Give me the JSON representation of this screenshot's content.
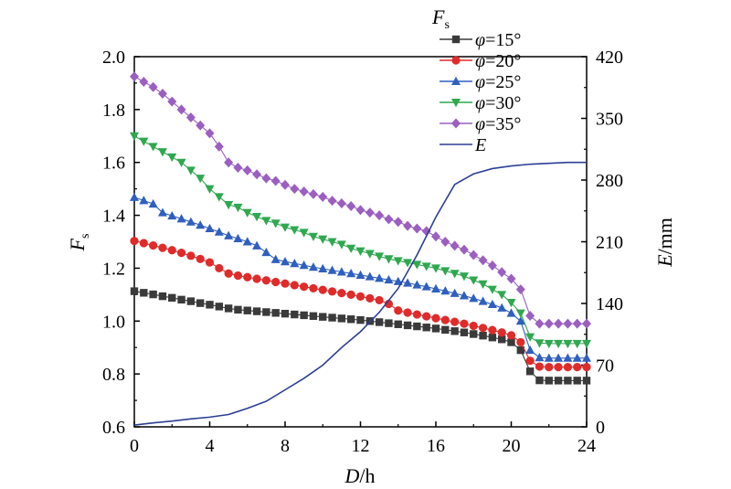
{
  "chart_data": {
    "type": "line",
    "xlabel_var": "D",
    "xlabel_unit": "/h",
    "ylabel_var": "F",
    "ylabel_sub": "s",
    "y2label_var": "E",
    "y2label_unit": "/mm",
    "xlim": [
      0,
      24
    ],
    "ylim": [
      0.6,
      2.0
    ],
    "y2lim": [
      0,
      420
    ],
    "xticks": [
      "0",
      "4",
      "8",
      "12",
      "16",
      "20",
      "24"
    ],
    "xtick_values": [
      0,
      4,
      8,
      12,
      16,
      20,
      24
    ],
    "yticks": [
      "0.6",
      "0.8",
      "1.0",
      "1.2",
      "1.4",
      "1.6",
      "1.8",
      "2.0"
    ],
    "ytick_values": [
      0.6,
      0.8,
      1.0,
      1.2,
      1.4,
      1.6,
      1.8,
      2.0
    ],
    "y2ticks": [
      "0",
      "70",
      "140",
      "210",
      "280",
      "350",
      "420"
    ],
    "y2tick_values": [
      0,
      70,
      140,
      210,
      280,
      350,
      420
    ],
    "legend_title_var": "F",
    "legend_title_sub": "s",
    "legend_position": "top-right",
    "grid": false,
    "x": [
      0,
      0.5,
      1,
      1.5,
      2,
      2.5,
      3,
      3.5,
      4,
      4.5,
      5,
      5.5,
      6,
      6.5,
      7,
      7.5,
      8,
      8.5,
      9,
      9.5,
      10,
      10.5,
      11,
      11.5,
      12,
      12.5,
      13,
      13.5,
      14,
      14.5,
      15,
      15.5,
      16,
      16.5,
      17,
      17.5,
      18,
      18.5,
      19,
      19.5,
      20,
      20.5,
      21,
      21.5,
      22,
      22.5,
      23,
      23.5,
      24
    ],
    "series": [
      {
        "name_var": "φ",
        "name_val": "=15°",
        "axis": "left",
        "color": "#3a3a3a",
        "marker": "square",
        "values": [
          1.113,
          1.107,
          1.101,
          1.094,
          1.088,
          1.081,
          1.075,
          1.068,
          1.062,
          1.055,
          1.048,
          1.043,
          1.04,
          1.037,
          1.034,
          1.031,
          1.028,
          1.025,
          1.022,
          1.019,
          1.016,
          1.013,
          1.01,
          1.007,
          1.004,
          1.0,
          0.996,
          0.992,
          0.988,
          0.984,
          0.98,
          0.976,
          0.972,
          0.967,
          0.962,
          0.957,
          0.951,
          0.945,
          0.938,
          0.931,
          0.92,
          0.89,
          0.81,
          0.776,
          0.775,
          0.775,
          0.775,
          0.775,
          0.775
        ]
      },
      {
        "name_var": "φ",
        "name_val": "=20°",
        "axis": "left",
        "color": "#e02b2b",
        "marker": "circle",
        "values": [
          1.303,
          1.295,
          1.286,
          1.277,
          1.268,
          1.258,
          1.247,
          1.235,
          1.222,
          1.2,
          1.18,
          1.172,
          1.166,
          1.16,
          1.154,
          1.148,
          1.142,
          1.136,
          1.13,
          1.124,
          1.118,
          1.112,
          1.106,
          1.1,
          1.093,
          1.086,
          1.079,
          1.065,
          1.04,
          1.032,
          1.025,
          1.018,
          1.011,
          1.004,
          0.997,
          0.99,
          0.982,
          0.974,
          0.966,
          0.957,
          0.946,
          0.92,
          0.85,
          0.828,
          0.826,
          0.826,
          0.826,
          0.826,
          0.826
        ]
      },
      {
        "name_var": "φ",
        "name_val": "=25°",
        "axis": "left",
        "color": "#2f5fbf",
        "marker": "triangle-up",
        "values": [
          1.468,
          1.456,
          1.443,
          1.41,
          1.398,
          1.387,
          1.375,
          1.363,
          1.35,
          1.337,
          1.323,
          1.312,
          1.3,
          1.285,
          1.26,
          1.233,
          1.225,
          1.218,
          1.211,
          1.204,
          1.198,
          1.192,
          1.186,
          1.18,
          1.174,
          1.168,
          1.162,
          1.156,
          1.15,
          1.144,
          1.137,
          1.13,
          1.122,
          1.114,
          1.105,
          1.096,
          1.086,
          1.075,
          1.063,
          1.05,
          1.03,
          1.0,
          0.89,
          0.862,
          0.86,
          0.86,
          0.86,
          0.86,
          0.86
        ]
      },
      {
        "name_var": "φ",
        "name_val": "=30°",
        "axis": "left",
        "color": "#2fa84f",
        "marker": "triangle-down",
        "values": [
          1.7,
          1.68,
          1.66,
          1.64,
          1.62,
          1.6,
          1.57,
          1.54,
          1.5,
          1.47,
          1.44,
          1.43,
          1.41,
          1.395,
          1.38,
          1.37,
          1.355,
          1.345,
          1.335,
          1.32,
          1.31,
          1.3,
          1.29,
          1.275,
          1.265,
          1.255,
          1.245,
          1.235,
          1.228,
          1.221,
          1.214,
          1.207,
          1.2,
          1.19,
          1.18,
          1.17,
          1.155,
          1.14,
          1.12,
          1.1,
          1.07,
          1.03,
          0.94,
          0.917,
          0.915,
          0.915,
          0.915,
          0.915,
          0.915
        ]
      },
      {
        "name_var": "φ",
        "name_val": "=35°",
        "axis": "left",
        "color": "#9b5fc0",
        "marker": "diamond",
        "values": [
          1.925,
          1.905,
          1.885,
          1.86,
          1.83,
          1.8,
          1.77,
          1.74,
          1.71,
          1.66,
          1.6,
          1.58,
          1.57,
          1.555,
          1.54,
          1.53,
          1.515,
          1.5,
          1.49,
          1.48,
          1.47,
          1.455,
          1.445,
          1.435,
          1.42,
          1.41,
          1.4,
          1.385,
          1.375,
          1.36,
          1.35,
          1.34,
          1.32,
          1.3,
          1.285,
          1.27,
          1.25,
          1.23,
          1.21,
          1.185,
          1.16,
          1.12,
          1.02,
          0.99,
          0.99,
          0.99,
          0.99,
          0.99,
          0.99
        ]
      },
      {
        "name_var": "E",
        "name_val": "",
        "axis": "right",
        "color": "#2b3f94",
        "marker": "none",
        "x": [
          0,
          1,
          2,
          3,
          4,
          5,
          6,
          7,
          8,
          9,
          10,
          11,
          12,
          13,
          14,
          15,
          16,
          17,
          18,
          19,
          20,
          21,
          22,
          23,
          24
        ],
        "values": [
          2,
          4.5,
          6.5,
          9,
          11,
          14,
          21,
          29,
          42,
          55,
          70,
          90,
          108,
          130,
          157,
          195,
          238,
          275,
          287,
          293,
          296,
          298,
          299,
          300,
          300
        ]
      }
    ]
  }
}
